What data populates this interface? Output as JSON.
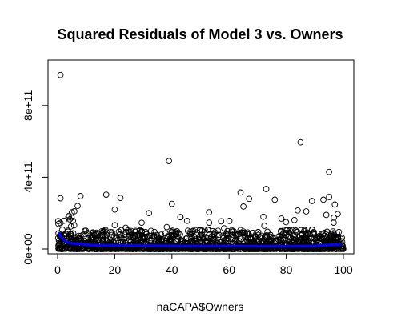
{
  "chart_data": {
    "type": "scatter",
    "title": "Squared Residuals of Model 3 vs. Owners",
    "xlabel": "naCAPA$Owners",
    "ylabel": "",
    "xlim": [
      0,
      100
    ],
    "ylim": [
      0,
      1000000000000
    ],
    "x_ticks": [
      0,
      20,
      40,
      60,
      80,
      100
    ],
    "x_tick_labels": [
      "0",
      "20",
      "40",
      "60",
      "80",
      "100"
    ],
    "y_ticks": [
      0,
      400000000000,
      800000000000
    ],
    "y_tick_labels": [
      "0e+00",
      "4e+11",
      "8e+11"
    ],
    "grid": false,
    "legend": "none",
    "point_color": "#000000",
    "smooth_color": "#0000ff",
    "outliers": [
      {
        "x": 1,
        "y": 970000000000
      },
      {
        "x": 85,
        "y": 595000000000
      },
      {
        "x": 39,
        "y": 490000000000
      },
      {
        "x": 95,
        "y": 430000000000
      },
      {
        "x": 73,
        "y": 335000000000
      },
      {
        "x": 64,
        "y": 315000000000
      },
      {
        "x": 17,
        "y": 303000000000
      },
      {
        "x": 8,
        "y": 295000000000
      },
      {
        "x": 95,
        "y": 290000000000
      },
      {
        "x": 22,
        "y": 285000000000
      },
      {
        "x": 1,
        "y": 283000000000
      },
      {
        "x": 67,
        "y": 280000000000
      },
      {
        "x": 93,
        "y": 275000000000
      },
      {
        "x": 76,
        "y": 275000000000
      },
      {
        "x": 89,
        "y": 268000000000
      },
      {
        "x": 40,
        "y": 252000000000
      },
      {
        "x": 97,
        "y": 248000000000
      },
      {
        "x": 7,
        "y": 240000000000
      },
      {
        "x": 65,
        "y": 237000000000
      },
      {
        "x": 20,
        "y": 220000000000
      },
      {
        "x": 84,
        "y": 215000000000
      },
      {
        "x": 87,
        "y": 210000000000
      },
      {
        "x": 5,
        "y": 205000000000
      },
      {
        "x": 53,
        "y": 205000000000
      },
      {
        "x": 32,
        "y": 200000000000
      },
      {
        "x": 98,
        "y": 195000000000
      },
      {
        "x": 94,
        "y": 190000000000
      },
      {
        "x": 4,
        "y": 185000000000
      },
      {
        "x": 72,
        "y": 180000000000
      },
      {
        "x": 43,
        "y": 178000000000
      },
      {
        "x": 1,
        "y": 145000000000
      },
      {
        "x": 1,
        "y": 80000000000
      }
    ],
    "band": {
      "x_range": [
        0,
        100
      ],
      "y_range": [
        0,
        180000000000
      ],
      "n": 1500
    },
    "smooth": {
      "x": [
        0.5,
        1,
        2,
        3,
        4,
        5,
        6,
        8,
        10,
        12,
        15,
        20,
        30,
        40,
        50,
        60,
        70,
        80,
        85,
        88,
        90,
        92,
        94,
        96,
        98,
        99
      ],
      "y": [
        88000000000,
        72000000000,
        55000000000,
        42000000000,
        35000000000,
        32000000000,
        30000000000,
        28000000000,
        25000000000,
        22000000000,
        21000000000,
        20000000000,
        19000000000,
        18000000000,
        17000000000,
        17000000000,
        16500000000,
        16000000000,
        16000000000,
        17000000000,
        18000000000,
        20000000000,
        22000000000,
        24000000000,
        25000000000,
        26000000000
      ]
    }
  }
}
